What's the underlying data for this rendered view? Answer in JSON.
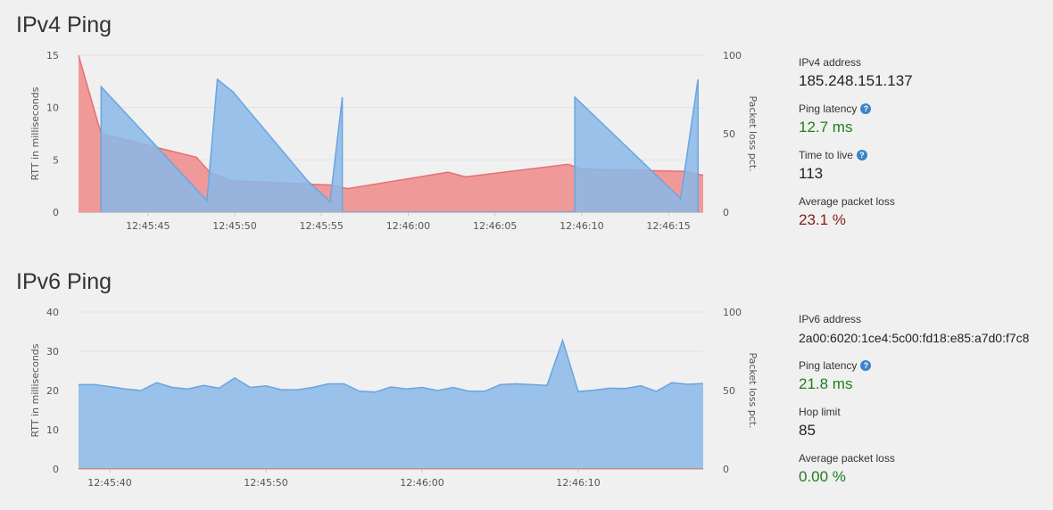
{
  "ipv4": {
    "title": "IPv4 Ping",
    "stats": {
      "address_label": "IPv4 address",
      "address_value": "185.248.151.137",
      "latency_label": "Ping latency",
      "latency_value": "12.7 ms",
      "ttl_label": "Time to live",
      "ttl_value": "113",
      "loss_label": "Average packet loss",
      "loss_value": "23.1 %",
      "help_icon_glyph": "?"
    }
  },
  "ipv6": {
    "title": "IPv6 Ping",
    "stats": {
      "address_label": "IPv6 address",
      "address_value": "2a00:6020:1ce4:5c00:fd18:e85:a7d0:f7c8",
      "latency_label": "Ping latency",
      "latency_value": "21.8 ms",
      "hop_label": "Hop limit",
      "hop_value": "85",
      "loss_label": "Average packet loss",
      "loss_value": "0.00 %",
      "help_icon_glyph": "?"
    }
  },
  "colors": {
    "rtt_fill": "#8ab8e8",
    "rtt_line": "#6aa5e0",
    "loss_fill": "#f08a8a",
    "loss_line": "#e87070",
    "latency_green": "#1e7e1e",
    "loss_red": "#8b1a1a",
    "help_icon": "#3a84c9"
  },
  "chart_data": [
    {
      "type": "area",
      "xlabel": "",
      "ylabel": "RTT in milliseconds",
      "y2label": "Packet loss pct.",
      "xlim": [
        "12:45:41",
        "12:46:17"
      ],
      "ylim": [
        0,
        15
      ],
      "y2lim": [
        0,
        100
      ],
      "yticks": [
        "0",
        "5",
        "10",
        "15"
      ],
      "y2ticks": [
        "0",
        "50",
        "100"
      ],
      "xticks": [
        "12:45:45",
        "12:45:50",
        "12:45:55",
        "12:46:00",
        "12:46:05",
        "12:46:10",
        "12:46:15"
      ],
      "grid": true,
      "series": [
        {
          "name": "",
          "axis": "left",
          "x": [
            "12:45:42.3",
            "12:45:42.3",
            "12:45:48.4",
            "12:45:49.0",
            "12:45:49.9",
            "12:45:54.2",
            "12:45:55.5",
            "12:45:56.2",
            "12:45:56.2",
            "12:46:09.6",
            "12:46:09.6",
            "12:46:15.7",
            "12:46:16.7",
            "12:46:16.7"
          ],
          "values": [
            0,
            12.0,
            1.1,
            12.7,
            11.5,
            3.0,
            1.0,
            11.0,
            0,
            0,
            11.0,
            1.3,
            12.7,
            0
          ]
        },
        {
          "name": "",
          "axis": "right",
          "x": [
            "12:45:41.0",
            "12:45:42.3",
            "12:45:47.8",
            "12:45:48.6",
            "12:45:49.8",
            "12:45:55.6",
            "12:45:56.5",
            "12:46:02.3",
            "12:46:03.3",
            "12:46:09.2",
            "12:46:10.0",
            "12:46:16.0",
            "12:46:17.0"
          ],
          "values": [
            100,
            50,
            35,
            25,
            20,
            17.3,
            15,
            25.5,
            22.5,
            30.5,
            27.5,
            26,
            23.5
          ]
        }
      ]
    },
    {
      "type": "area",
      "xlabel": "",
      "ylabel": "RTT in milliseconds",
      "y2label": "Packet loss pct.",
      "xlim": [
        "12:45:38",
        "12:46:18"
      ],
      "ylim": [
        0,
        40
      ],
      "y2lim": [
        0,
        100
      ],
      "yticks": [
        "0",
        "10",
        "20",
        "30",
        "40"
      ],
      "y2ticks": [
        "0",
        "50",
        "100"
      ],
      "xticks": [
        "12:45:40",
        "12:45:50",
        "12:46:00",
        "12:46:10"
      ],
      "grid": true,
      "series": [
        {
          "name": "",
          "axis": "left",
          "values": [
            21.5,
            21.5,
            21,
            20.4,
            20,
            22,
            20.8,
            20.4,
            21.3,
            20.6,
            23.2,
            20.8,
            21.2,
            20.2,
            20.2,
            20.8,
            21.7,
            21.7,
            19.8,
            19.6,
            20.9,
            20.4,
            20.8,
            20,
            20.8,
            19.8,
            19.8,
            21.5,
            21.7,
            21.5,
            21.3,
            32.8,
            19.7,
            20.1,
            20.6,
            20.5,
            21.2,
            19.8,
            22,
            21.6,
            21.8
          ]
        },
        {
          "name": "",
          "axis": "right",
          "values": [
            0,
            0
          ]
        }
      ]
    }
  ]
}
